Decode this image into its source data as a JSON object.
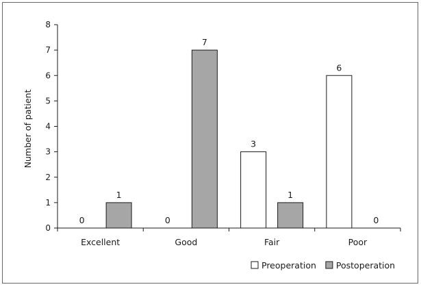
{
  "chart_data": {
    "type": "bar",
    "categories": [
      "Excellent",
      "Good",
      "Fair",
      "Poor"
    ],
    "series": [
      {
        "name": "Preoperation",
        "values": [
          0,
          0,
          3,
          6
        ]
      },
      {
        "name": "Postoperation",
        "values": [
          1,
          7,
          1,
          0
        ]
      }
    ],
    "title": "",
    "xlabel": "",
    "ylabel": "Number of patient",
    "ylim": [
      0,
      8
    ],
    "yticks": [
      0,
      1,
      2,
      3,
      4,
      5,
      6,
      7,
      8
    ],
    "grid": false,
    "legend_position": "bottom-right",
    "colors": {
      "Preoperation": "#ffffff",
      "Postoperation": "#a6a6a6",
      "bar_stroke": "#1a1a1a",
      "frame": "#666666"
    }
  }
}
